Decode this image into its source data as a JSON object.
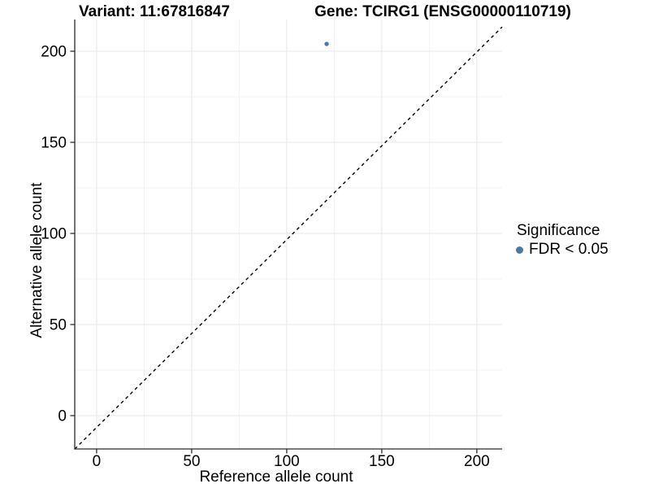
{
  "header": {
    "variant_title": "Variant: 11:67816847",
    "gene_title": "Gene: TCIRG1 (ENSG00000110719)"
  },
  "legend": {
    "title": "Significance",
    "items": [
      {
        "label": "FDR < 0.05",
        "marker": "circle",
        "color": "#4a79a8"
      }
    ]
  },
  "colors": {
    "point": "#4a79a8",
    "reference_line": "#000000",
    "axis": "#2a2a2a",
    "grid_major": "#e7e7e7",
    "grid_minor": "#f3f3f3",
    "text": "#000000",
    "background": "#ffffff"
  },
  "chart_data": {
    "type": "scatter",
    "titles": [
      "Variant: 11:67816847",
      "Gene: TCIRG1 (ENSG00000110719)"
    ],
    "xlabel": "Reference allele count",
    "ylabel": "Alternative allele count",
    "xlim": [
      -11.5,
      213.3
    ],
    "ylim": [
      -18.3,
      217.4
    ],
    "x_ticks": [
      0,
      50,
      100,
      150,
      200
    ],
    "y_ticks": [
      0,
      50,
      100,
      150,
      200
    ],
    "x_minor_ticks": [
      25,
      75,
      125,
      175
    ],
    "y_minor_ticks": [
      25,
      75,
      125,
      175
    ],
    "grid": "major+minor",
    "legend_position": "right",
    "series": [
      {
        "name": "FDR < 0.05",
        "color": "#4a79a8",
        "marker_radius_px": 2.7,
        "points": [
          {
            "x": 121,
            "y": 204
          }
        ]
      }
    ],
    "reference_line": {
      "slope": 1,
      "intercept": 0,
      "style": "dashed",
      "color": "#000000"
    }
  }
}
